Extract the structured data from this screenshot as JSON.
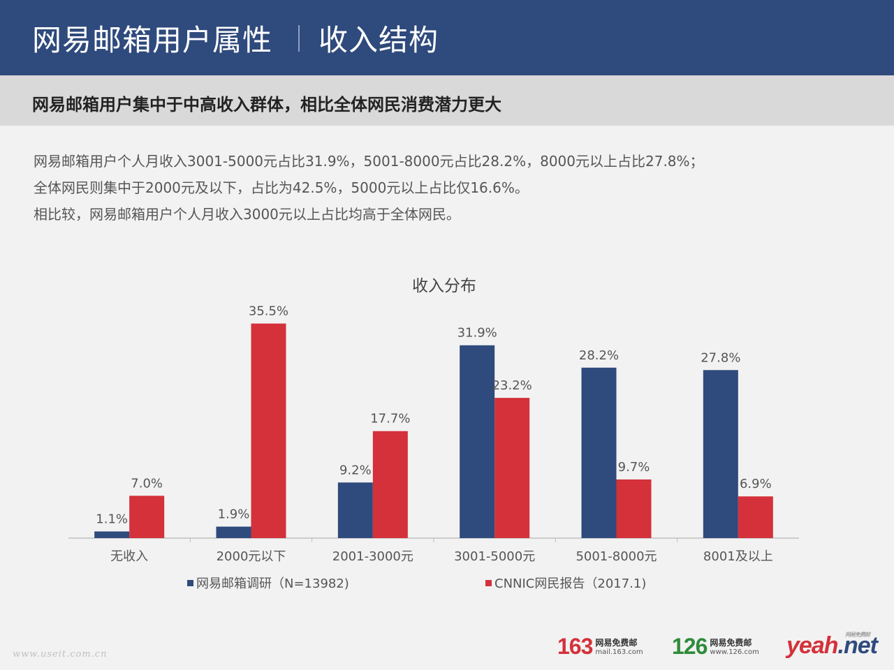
{
  "header": {
    "title": "网易邮箱用户属性",
    "subtitle": "收入结构"
  },
  "banner": "网易邮箱用户集中于中高收入群体，相比全体网民消费潜力更大",
  "description": [
    "网易邮箱用户个人月收入3001-5000元占比31.9%，5001-8000元占比28.2%，8000元以上占比27.8%；",
    "全体网民则集中于2000元及以下，占比为42.5%，5000元以上占比仅16.6%。",
    "相比较，网易邮箱用户个人月收入3000元以上占比均高于全体网民。"
  ],
  "colors": {
    "header_bg": "#2f4a7c",
    "series_blue": "#2f4a7c",
    "series_red": "#d4313a"
  },
  "chart_data": {
    "type": "bar",
    "title": "收入分布",
    "categories": [
      "无收入",
      "2000元以下",
      "2001-3000元",
      "3001-5000元",
      "5001-8000元",
      "8001及以上"
    ],
    "series": [
      {
        "name": "网易邮箱调研（N=13982)",
        "color": "#2f4a7c",
        "values": [
          1.1,
          1.9,
          9.2,
          31.9,
          28.2,
          27.8
        ],
        "labels": [
          "1.1%",
          "1.9%",
          "9.2%",
          "31.9%",
          "28.2%",
          "27.8%"
        ]
      },
      {
        "name": "CNNIC网民报告（2017.1)",
        "color": "#d4313a",
        "values": [
          7.0,
          35.5,
          17.7,
          23.2,
          9.7,
          6.9
        ],
        "labels": [
          "7.0%",
          "35.5%",
          "17.7%",
          "23.2%",
          "9.7%",
          "6.9%"
        ]
      }
    ],
    "ylim": [
      0,
      40
    ],
    "grid": false,
    "legend_position": "bottom"
  },
  "footer": {
    "watermark": "www.useit.com.cn",
    "logo163": {
      "num": "163",
      "cn": "网易免费邮",
      "url": "mail.163.com"
    },
    "logo126": {
      "num": "126",
      "cn": "网易免费邮",
      "url": "www.126.com"
    },
    "logoYeah": {
      "main": "yeah",
      "suffix": ".net",
      "tag": "网易免费邮"
    }
  }
}
